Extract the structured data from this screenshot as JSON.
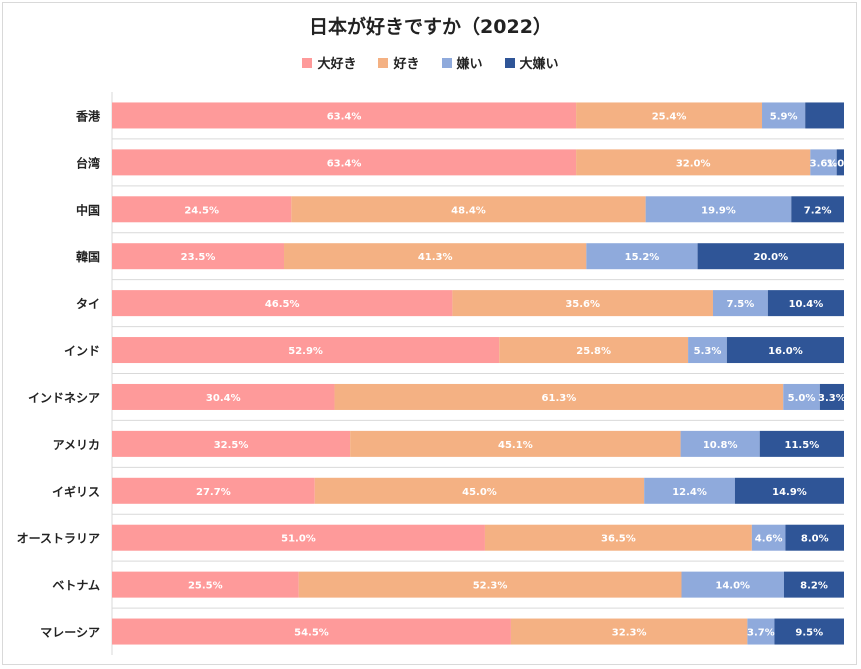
{
  "title": "日本が好きですか（2022）",
  "colors": {
    "大好き": "#fe9a9a",
    "好き": "#f4b183",
    "嫌い": "#8faadc",
    "大嫌い": "#2f5597"
  },
  "chart_data": {
    "type": "bar",
    "orientation": "horizontal-stacked-100",
    "title": "日本が好きですか（2022）",
    "legend_position": "top",
    "categories": [
      "香港",
      "台湾",
      "中国",
      "韓国",
      "タイ",
      "インド",
      "インドネシア",
      "アメリカ",
      "イギリス",
      "オーストラリア",
      "ベトナム",
      "マレーシア"
    ],
    "series": [
      {
        "name": "大好き",
        "color": "#fe9a9a",
        "values": [
          63.4,
          63.4,
          24.5,
          23.5,
          46.5,
          52.9,
          30.4,
          32.5,
          27.7,
          51.0,
          25.5,
          54.5
        ],
        "labels": [
          "63.4%",
          "63.4%",
          "24.5%",
          "23.5%",
          "46.5%",
          "52.9%",
          "30.4%",
          "32.5%",
          "27.7%",
          "51.0%",
          "25.5%",
          "54.5%"
        ]
      },
      {
        "name": "好き",
        "color": "#f4b183",
        "values": [
          25.4,
          32.0,
          48.4,
          41.3,
          35.6,
          25.8,
          61.3,
          45.1,
          45.0,
          36.5,
          52.3,
          32.3
        ],
        "labels": [
          "25.4%",
          "32.0%",
          "48.4%",
          "41.3%",
          "35.6%",
          "25.8%",
          "61.3%",
          "45.1%",
          "45.0%",
          "36.5%",
          "52.3%",
          "32.3%"
        ]
      },
      {
        "name": "嫌い",
        "color": "#8faadc",
        "values": [
          5.9,
          3.6,
          19.9,
          15.2,
          7.5,
          5.3,
          5.0,
          10.8,
          12.4,
          4.6,
          14.0,
          3.7
        ],
        "labels": [
          "5.9%",
          "3.6%",
          "19.9%",
          "15.2%",
          "7.5%",
          "5.3%",
          "5.0%",
          "10.8%",
          "12.4%",
          "4.6%",
          "14.0%",
          "3.7%"
        ]
      },
      {
        "name": "大嫌い",
        "color": "#2f5597",
        "values": [
          5.3,
          1.0,
          7.2,
          20.0,
          10.4,
          16.0,
          3.3,
          11.5,
          14.9,
          8.0,
          8.2,
          9.5
        ],
        "labels": [
          "",
          "1.0%",
          "7.2%",
          "20.0%",
          "10.4%",
          "16.0%",
          "3.3%",
          "11.5%",
          "14.9%",
          "8.0%",
          "8.2%",
          "9.5%"
        ]
      }
    ]
  }
}
